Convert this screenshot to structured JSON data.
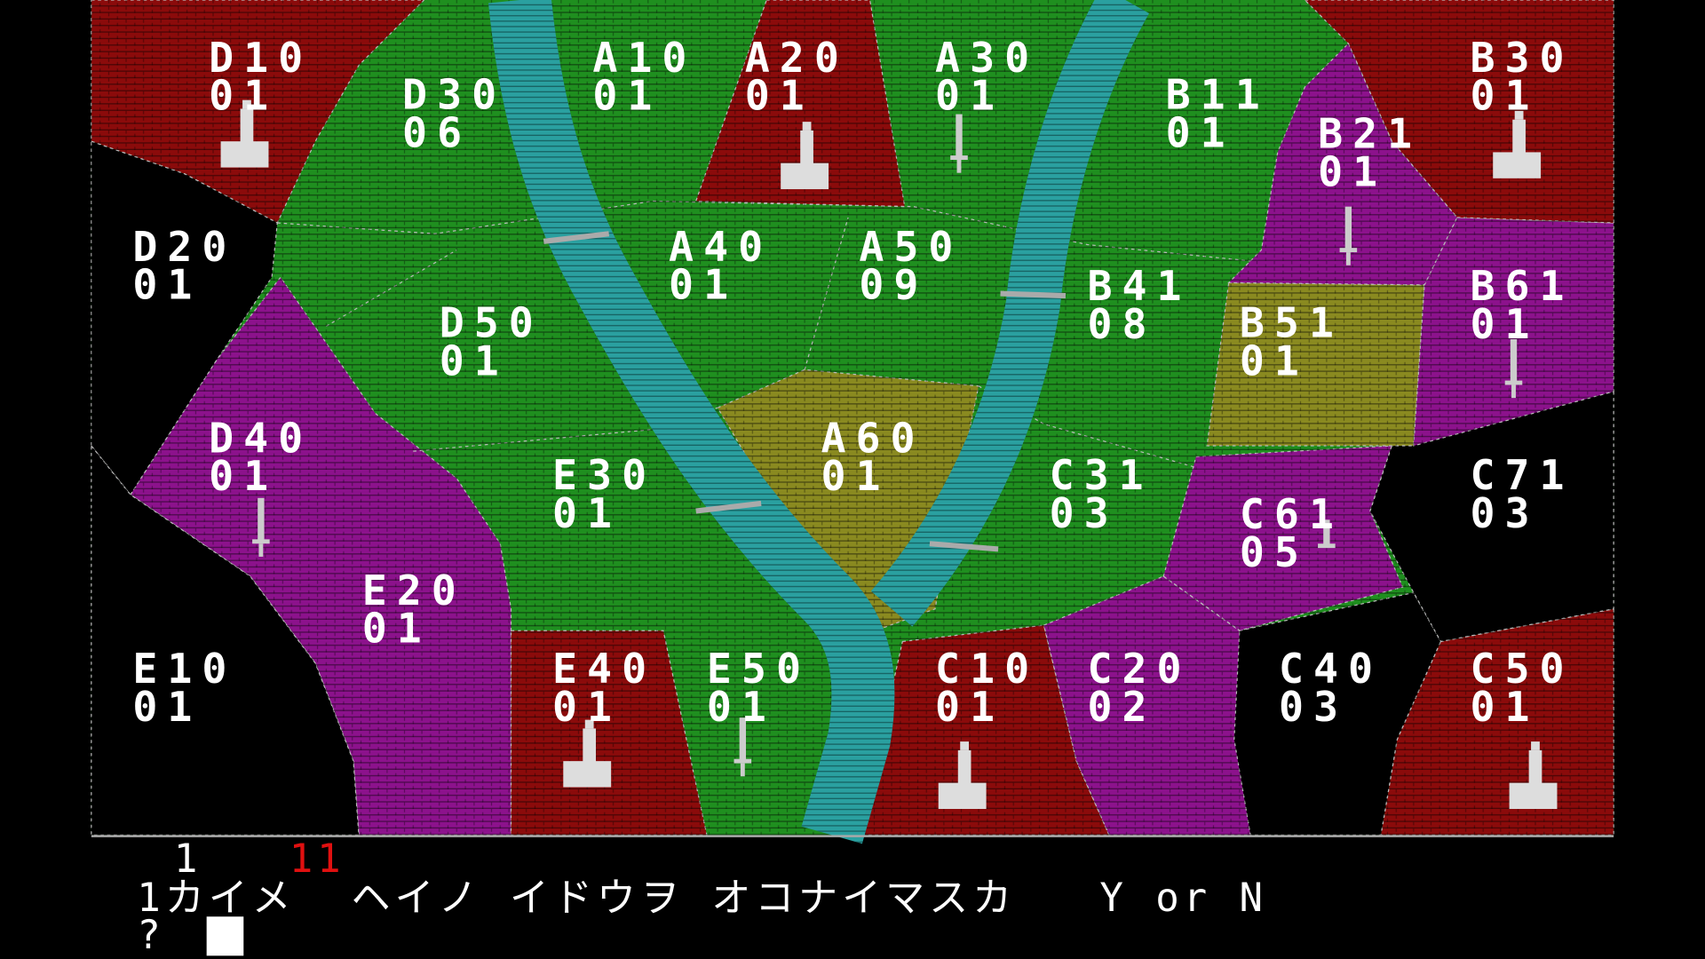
{
  "game": {
    "colors": {
      "red_territory": "#8b0b0b",
      "green_territory": "#1f8f1f",
      "purple_territory": "#8c128c",
      "black_territory": "#000000",
      "olive_territory": "#8a8a20",
      "river": "#2aa0a0",
      "highlight_number": "#e01010"
    },
    "regions": [
      {
        "id": "D10",
        "value": "01",
        "color": "red"
      },
      {
        "id": "D30",
        "value": "06",
        "color": "green"
      },
      {
        "id": "A10",
        "value": "01",
        "color": "green"
      },
      {
        "id": "A20",
        "value": "01",
        "color": "red"
      },
      {
        "id": "A30",
        "value": "01",
        "color": "green"
      },
      {
        "id": "B11",
        "value": "01",
        "color": "green"
      },
      {
        "id": "B21",
        "value": "01",
        "color": "purple"
      },
      {
        "id": "B30",
        "value": "01",
        "color": "red"
      },
      {
        "id": "D20",
        "value": "01",
        "color": "black"
      },
      {
        "id": "A40",
        "value": "01",
        "color": "green"
      },
      {
        "id": "A50",
        "value": "09",
        "color": "green"
      },
      {
        "id": "B41",
        "value": "08",
        "color": "green"
      },
      {
        "id": "B51",
        "value": "01",
        "color": "olive"
      },
      {
        "id": "B61",
        "value": "01",
        "color": "purple"
      },
      {
        "id": "D50",
        "value": "01",
        "color": "green"
      },
      {
        "id": "D40",
        "value": "01",
        "color": "purple"
      },
      {
        "id": "E30",
        "value": "01",
        "color": "green"
      },
      {
        "id": "A60",
        "value": "01",
        "color": "olive"
      },
      {
        "id": "C31",
        "value": "03",
        "color": "green"
      },
      {
        "id": "C61",
        "value": "05",
        "color": "purple"
      },
      {
        "id": "C71",
        "value": "03",
        "color": "black"
      },
      {
        "id": "E20",
        "value": "01",
        "color": "purple"
      },
      {
        "id": "E10",
        "value": "01",
        "color": "black"
      },
      {
        "id": "E40",
        "value": "01",
        "color": "red"
      },
      {
        "id": "E50",
        "value": "01",
        "color": "green"
      },
      {
        "id": "C10",
        "value": "01",
        "color": "red"
      },
      {
        "id": "C20",
        "value": "02",
        "color": "purple"
      },
      {
        "id": "C40",
        "value": "03",
        "color": "black"
      },
      {
        "id": "C50",
        "value": "01",
        "color": "red"
      }
    ]
  },
  "console": {
    "turn_number": "1",
    "red_number": "11",
    "prompt_line": "1カイメ  ヘイノ イドウヲ オコナイマスカ   Y or N",
    "input_prompt": "?"
  }
}
